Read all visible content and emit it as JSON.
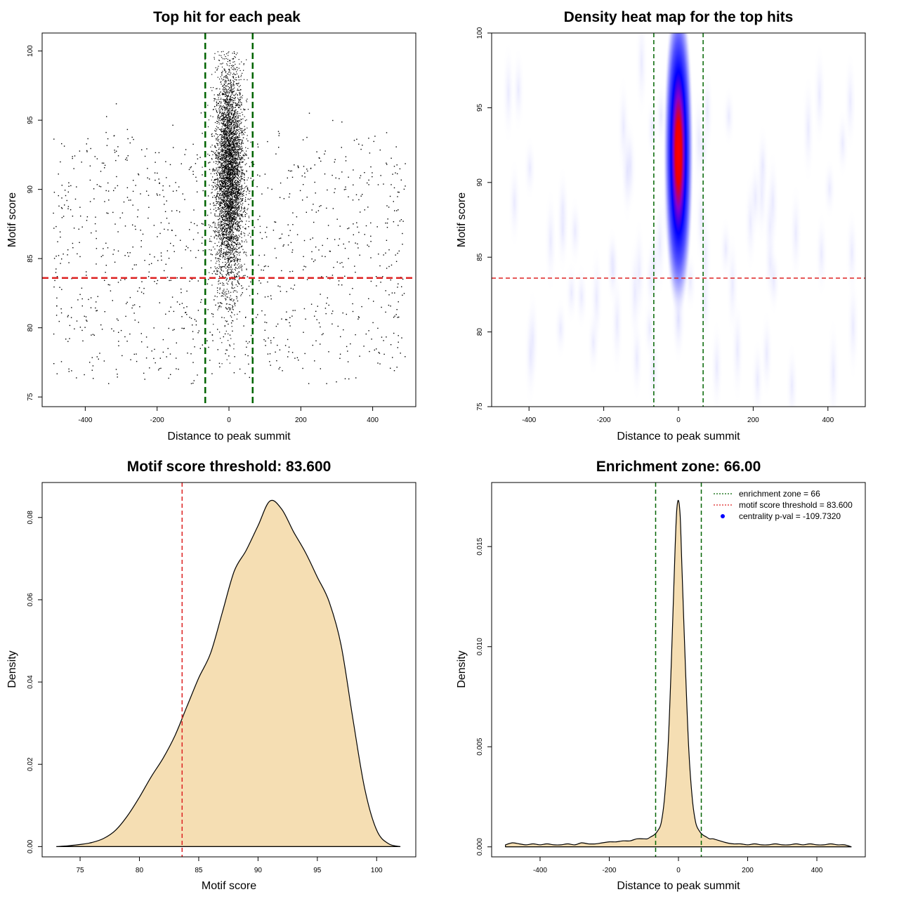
{
  "chart_data": [
    {
      "type": "scatter",
      "title": "Top hit for each peak",
      "xlabel": "Distance to peak summit",
      "ylabel": "Motif score",
      "xlim": [
        -520,
        520
      ],
      "ylim": [
        74.3,
        101.3
      ],
      "xticks": [
        -400,
        -200,
        0,
        200,
        400
      ],
      "xtick_labels": [
        "-400",
        "-200",
        "0",
        "200",
        "400"
      ],
      "yticks": [
        75,
        80,
        85,
        90,
        95,
        100
      ],
      "ytick_labels": [
        "75",
        "80",
        "85",
        "90",
        "95",
        "100"
      ],
      "vlines": [
        -66,
        66
      ],
      "hline": 83.6,
      "colors": {
        "points": "#000000",
        "vline": "#006400",
        "hline": "#dd2222"
      },
      "dense_cluster": {
        "x_center": 0,
        "x_sd": 20,
        "y_center": 91,
        "y_sd": 4,
        "y_range": [
          75,
          100
        ],
        "approx_points": 4500
      },
      "scatter_background": {
        "x_range": [
          -490,
          490
        ],
        "y_range": [
          76,
          100
        ],
        "approx_points": 1100
      }
    },
    {
      "type": "heatmap",
      "title": "Density heat map for the top hits",
      "xlabel": "Distance to peak summit",
      "ylabel": "Motif score",
      "xlim": [
        -500,
        500
      ],
      "ylim": [
        75,
        100
      ],
      "xticks": [
        -400,
        -200,
        0,
        200,
        400
      ],
      "xtick_labels": [
        "-400",
        "-200",
        "0",
        "200",
        "400"
      ],
      "yticks": [
        75,
        80,
        85,
        90,
        95,
        100
      ],
      "ytick_labels": [
        "75",
        "80",
        "85",
        "90",
        "95",
        "100"
      ],
      "vlines": [
        -66,
        66
      ],
      "hline": 83.6,
      "density_center": {
        "x": 0,
        "y": 92
      },
      "colors": {
        "low": "#ffffff",
        "mid": "#0000ff",
        "high": "#ff0000",
        "vline": "#006400",
        "hline": "#dd2222"
      }
    },
    {
      "type": "area",
      "title": "Motif score threshold: 83.600",
      "xlabel": "Motif score",
      "ylabel": "Density",
      "xlim": [
        71.8,
        103.3
      ],
      "ylim": [
        -0.0025,
        0.0885
      ],
      "xticks": [
        75,
        80,
        85,
        90,
        95,
        100
      ],
      "xtick_labels": [
        "75",
        "80",
        "85",
        "90",
        "95",
        "100"
      ],
      "yticks": [
        0,
        0.02,
        0.04,
        0.06,
        0.08
      ],
      "ytick_labels": [
        "0.00",
        "0.02",
        "0.04",
        "0.06",
        "0.08"
      ],
      "vline": 83.6,
      "x": [
        73,
        74,
        75,
        76,
        77,
        78,
        79,
        80,
        81,
        82,
        83,
        84,
        85,
        86,
        87,
        88,
        89,
        90,
        91,
        92,
        93,
        94,
        95,
        96,
        97,
        98,
        99,
        100,
        101,
        102
      ],
      "y": [
        0.0,
        0.0002,
        0.0005,
        0.001,
        0.002,
        0.004,
        0.0075,
        0.012,
        0.017,
        0.0215,
        0.027,
        0.034,
        0.041,
        0.047,
        0.057,
        0.067,
        0.072,
        0.078,
        0.084,
        0.082,
        0.0765,
        0.0715,
        0.0655,
        0.0595,
        0.049,
        0.031,
        0.014,
        0.004,
        0.0007,
        0.0
      ],
      "colors": {
        "fill": "#f5deb3",
        "line": "#000000",
        "vline": "#dd2222"
      }
    },
    {
      "type": "area",
      "title": "Enrichment zone: 66.00",
      "xlabel": "Distance to peak summit",
      "ylabel": "Density",
      "xlim": [
        -540,
        540
      ],
      "ylim": [
        -0.0005,
        0.0182
      ],
      "xticks": [
        -400,
        -200,
        0,
        200,
        400
      ],
      "xtick_labels": [
        "-400",
        "-200",
        "0",
        "200",
        "400"
      ],
      "yticks": [
        0,
        0.005,
        0.01,
        0.015
      ],
      "ytick_labels": [
        "0.000",
        "0.005",
        "0.010",
        "0.015"
      ],
      "vlines": [
        -66,
        66
      ],
      "x": [
        -500,
        -480,
        -460,
        -440,
        -420,
        -400,
        -380,
        -360,
        -340,
        -320,
        -300,
        -280,
        -260,
        -240,
        -220,
        -200,
        -180,
        -160,
        -140,
        -120,
        -100,
        -90,
        -80,
        -70,
        -60,
        -50,
        -40,
        -30,
        -20,
        -10,
        -5,
        0,
        5,
        10,
        20,
        30,
        40,
        50,
        60,
        70,
        80,
        90,
        100,
        120,
        140,
        160,
        180,
        200,
        220,
        240,
        260,
        280,
        300,
        320,
        340,
        360,
        380,
        400,
        420,
        440,
        460,
        480,
        500
      ],
      "y": [
        0.0001,
        0.0002,
        0.00015,
        0.0001,
        0.00015,
        0.0001,
        0.00015,
        0.0001,
        0.0001,
        0.00015,
        0.0001,
        0.0002,
        0.00015,
        0.00015,
        0.0002,
        0.00025,
        0.00025,
        0.0003,
        0.0003,
        0.0004,
        0.0004,
        0.0004,
        0.0005,
        0.0006,
        0.0008,
        0.0012,
        0.0025,
        0.005,
        0.0095,
        0.0148,
        0.0168,
        0.0173,
        0.0165,
        0.014,
        0.009,
        0.0048,
        0.0024,
        0.0012,
        0.0008,
        0.0006,
        0.0005,
        0.0004,
        0.0004,
        0.0003,
        0.0002,
        0.00015,
        0.00015,
        0.0001,
        0.00015,
        0.0001,
        0.0001,
        0.00015,
        0.0001,
        0.0001,
        0.00015,
        0.0001,
        0.00015,
        0.0001,
        0.0001,
        0.00015,
        0.0001,
        0.0001,
        0.0
      ],
      "legend": [
        {
          "label": "enrichment zone = 66",
          "marker": "dotted-line",
          "color": "#006400"
        },
        {
          "label": "motif score threshold = 83.600",
          "marker": "dotted-line",
          "color": "#dd2222"
        },
        {
          "label": "centrality p-val = -109.7320",
          "marker": "dot",
          "color": "#0000ff"
        }
      ],
      "legend_position": "top-right",
      "colors": {
        "fill": "#f5deb3",
        "line": "#000000",
        "vline": "#006400"
      }
    }
  ]
}
